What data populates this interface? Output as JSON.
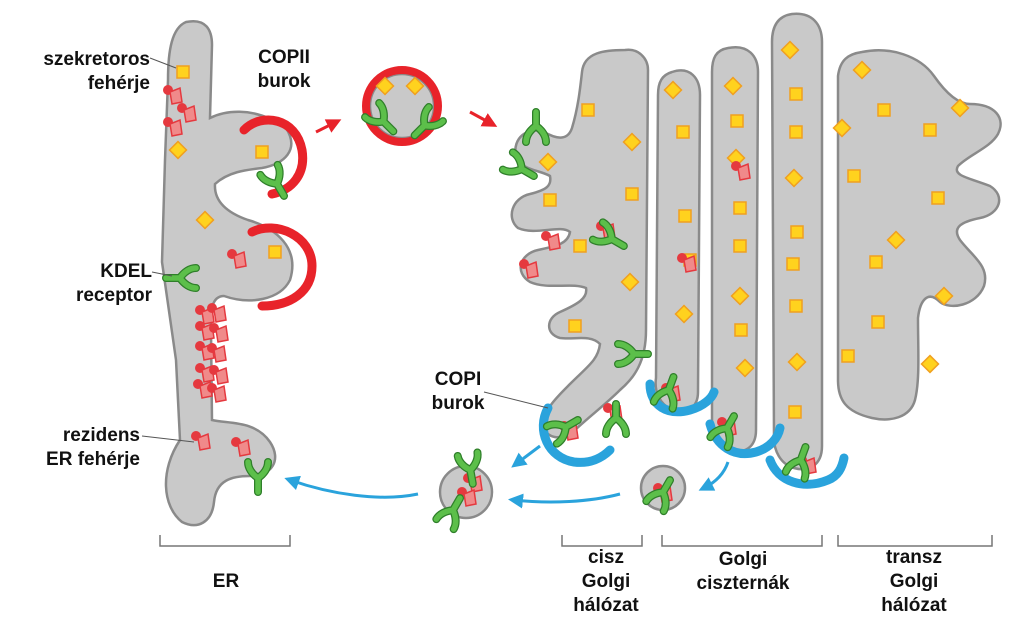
{
  "labels": {
    "secretory_protein": [
      "szekretoros",
      "fehérje"
    ],
    "copii_coat": [
      "COPII",
      "burok"
    ],
    "kdel_receptor": [
      "KDEL",
      "receptor"
    ],
    "resident_er_protein": [
      "rezidens",
      "ER fehérje"
    ],
    "copi_coat": [
      "COPI",
      "burok"
    ],
    "er": "ER",
    "cis_golgi_network": [
      "cisz",
      "Golgi",
      "hálózat"
    ],
    "golgi_cisternae": [
      "Golgi",
      "ciszternák"
    ],
    "trans_golgi_network": [
      "transz",
      "Golgi",
      "hálózat"
    ]
  },
  "colors": {
    "membrane_fill": "#c9c9c9",
    "membrane_stroke": "#8a8a8a",
    "copii_coat": "#e8232a",
    "copi_coat": "#2aa3dc",
    "cargo_fill": "#ffd21e",
    "cargo_stroke": "#f0a020",
    "receptor": "#5cbf4a",
    "resident_protein": "#e5393f",
    "forward_arrow": "#e8232a",
    "retrograde_arrow": "#2aa3dc"
  }
}
